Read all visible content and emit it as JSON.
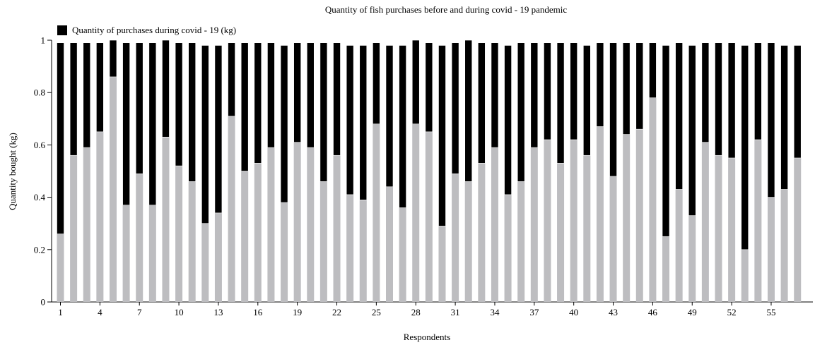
{
  "chart_data": {
    "type": "bar",
    "stacked": true,
    "title": "Quantity of fish purchases before and during covid - 19 pandemic",
    "xlabel": "Respondents",
    "ylabel": "Quantity bought (kg)",
    "ylim": [
      0,
      1
    ],
    "yticks": [
      "0",
      "0.2",
      "0.4",
      "0.6",
      "0.8",
      "1"
    ],
    "xtick_labels": [
      "1",
      "4",
      "7",
      "10",
      "13",
      "16",
      "19",
      "22",
      "25",
      "28",
      "31",
      "34",
      "37",
      "40",
      "43",
      "46",
      "49",
      "52",
      "55"
    ],
    "categories": [
      1,
      2,
      3,
      4,
      5,
      6,
      7,
      8,
      9,
      10,
      11,
      12,
      13,
      14,
      15,
      16,
      17,
      18,
      19,
      20,
      21,
      22,
      23,
      24,
      25,
      26,
      27,
      28,
      29,
      30,
      31,
      32,
      33,
      34,
      35,
      36,
      37,
      38,
      39,
      40,
      41,
      42,
      43,
      44,
      45,
      46,
      47,
      48,
      49,
      50,
      51,
      52,
      53,
      54,
      55,
      56,
      57
    ],
    "legend_position": "top-left",
    "grid": false,
    "series": [
      {
        "color": "#bdbdc0",
        "values": [
          0.26,
          0.56,
          0.59,
          0.65,
          0.86,
          0.37,
          0.49,
          0.37,
          0.63,
          0.52,
          0.46,
          0.3,
          0.34,
          0.71,
          0.5,
          0.53,
          0.59,
          0.38,
          0.61,
          0.59,
          0.46,
          0.56,
          0.41,
          0.39,
          0.68,
          0.44,
          0.36,
          0.68,
          0.65,
          0.29,
          0.49,
          0.46,
          0.53,
          0.59,
          0.41,
          0.46,
          0.59,
          0.62,
          0.53,
          0.62,
          0.56,
          0.67,
          0.48,
          0.64,
          0.66,
          0.78,
          0.25,
          0.43,
          0.33,
          0.61,
          0.56,
          0.55,
          0.2,
          0.62,
          0.4,
          0.43,
          0.55
        ]
      },
      {
        "name": "Quantity of purchases during covid - 19 (kg)",
        "color": "#000000",
        "values": [
          0.73,
          0.43,
          0.4,
          0.34,
          0.14,
          0.62,
          0.5,
          0.62,
          0.37,
          0.47,
          0.53,
          0.68,
          0.64,
          0.28,
          0.49,
          0.46,
          0.4,
          0.6,
          0.38,
          0.4,
          0.53,
          0.43,
          0.57,
          0.59,
          0.31,
          0.54,
          0.62,
          0.32,
          0.34,
          0.69,
          0.5,
          0.54,
          0.46,
          0.4,
          0.57,
          0.53,
          0.4,
          0.37,
          0.46,
          0.37,
          0.42,
          0.32,
          0.51,
          0.35,
          0.33,
          0.21,
          0.73,
          0.56,
          0.65,
          0.38,
          0.43,
          0.44,
          0.78,
          0.37,
          0.59,
          0.55,
          0.43
        ]
      }
    ]
  }
}
